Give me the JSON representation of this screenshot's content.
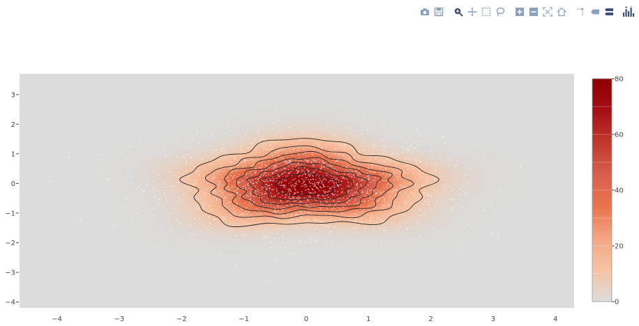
{
  "modebar": {
    "buttons": [
      {
        "name": "camera-icon"
      },
      {
        "name": "save-icon"
      },
      {
        "name": "zoom-icon"
      },
      {
        "name": "pan-icon"
      },
      {
        "name": "box-select-icon"
      },
      {
        "name": "lasso-icon"
      },
      {
        "name": "zoom-in-icon"
      },
      {
        "name": "zoom-out-icon"
      },
      {
        "name": "autoscale-icon"
      },
      {
        "name": "reset-axes-icon"
      },
      {
        "name": "spike-lines-icon"
      },
      {
        "name": "hover-closest-icon"
      },
      {
        "name": "hover-compare-icon"
      },
      {
        "name": "plotly-logo-icon"
      }
    ],
    "icon_color": "#8aa2c0",
    "logo_color": "#3f4f75"
  },
  "chart_data": {
    "type": "heatmap",
    "subtype": "2d-density-contour-with-scatter",
    "title": "",
    "xlabel": "",
    "ylabel": "",
    "xlim": [
      -4.6,
      4.3
    ],
    "ylim": [
      -4.2,
      3.7
    ],
    "x_ticks": [
      -4,
      -3,
      -2,
      -1,
      0,
      1,
      2,
      3,
      4
    ],
    "x_tick_labels": [
      "−4",
      "−3",
      "−2",
      "−1",
      "0",
      "1",
      "2",
      "3",
      "4"
    ],
    "y_ticks": [
      -4,
      -3,
      -2,
      -1,
      0,
      1,
      2,
      3
    ],
    "y_tick_labels": [
      "−4",
      "−3",
      "−2",
      "−1",
      "0",
      "1",
      "2",
      "3"
    ],
    "density_center": [
      0.0,
      -0.05
    ],
    "density_spread": [
      0.95,
      0.7
    ],
    "peak_value": 80,
    "contour_levels": [
      10,
      20,
      30,
      40,
      50,
      60,
      70
    ],
    "contour_color": "#222222",
    "scatter_color": "#ffffff",
    "scatter_points": 1800,
    "background_color": "#dcdcdc",
    "colorbar": {
      "min": 0,
      "max": 80,
      "ticks": [
        0,
        20,
        40,
        60,
        80
      ],
      "tick_labels": [
        "0",
        "20",
        "40",
        "60",
        "80"
      ],
      "colorscale": [
        "#dcdcdc",
        "#f5c3a3",
        "#f4a582",
        "#e8744d",
        "#d6604d",
        "#c0392b",
        "#a50f15",
        "#8b0000"
      ]
    },
    "grid": false,
    "legend": "none"
  }
}
